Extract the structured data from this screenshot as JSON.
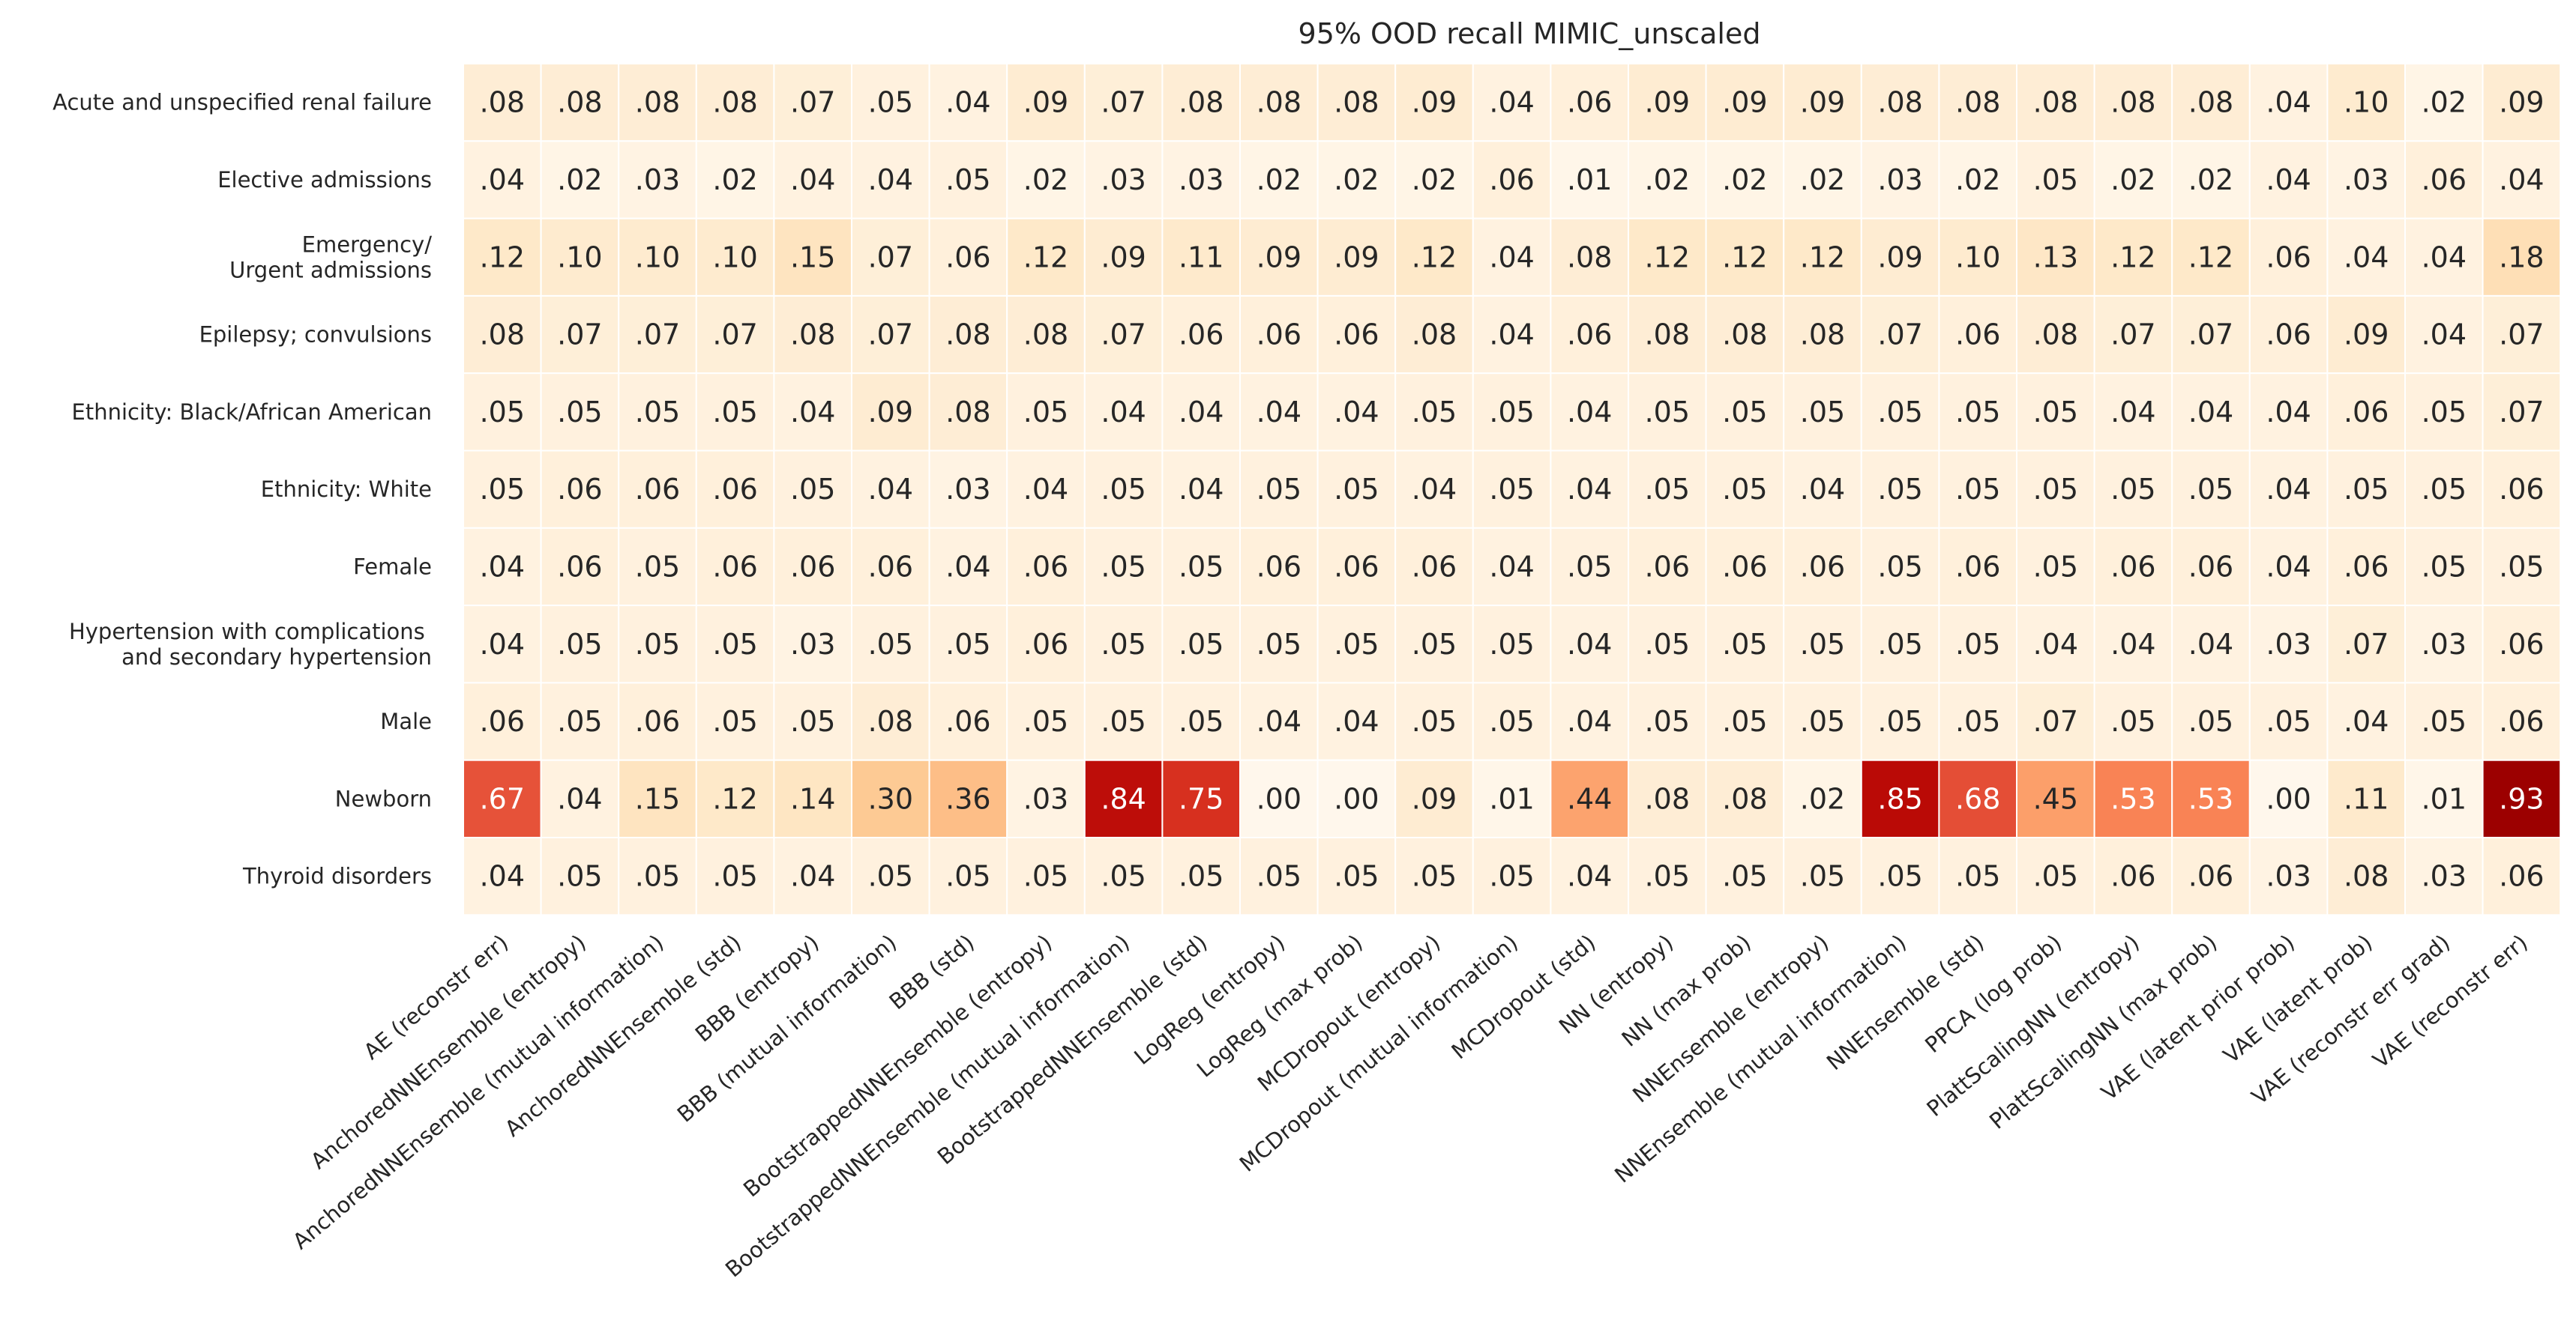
{
  "chart_data": {
    "type": "heatmap",
    "title": "95% OOD recall MIMIC_unscaled",
    "rows": [
      "Acute and unspecified renal failure",
      "Elective admissions",
      "Emergency/\nUrgent admissions",
      "Epilepsy; convulsions",
      "Ethnicity: Black/African American",
      "Ethnicity: White",
      "Female",
      "Hypertension with complications \nand secondary hypertension",
      "Male",
      "Newborn",
      "Thyroid disorders"
    ],
    "columns": [
      "AE (reconstr err)",
      "AnchoredNNEnsemble (entropy)",
      "AnchoredNNEnsemble (mutual information)",
      "AnchoredNNEnsemble (std)",
      "BBB (entropy)",
      "BBB (mutual information)",
      "BBB (std)",
      "BootstrappedNNEnsemble (entropy)",
      "BootstrappedNNEnsemble (mutual information)",
      "BootstrappedNNEnsemble (std)",
      "LogReg (entropy)",
      "LogReg (max prob)",
      "MCDropout (entropy)",
      "MCDropout (mutual information)",
      "MCDropout (std)",
      "NN (entropy)",
      "NN (max prob)",
      "NNEnsemble (entropy)",
      "NNEnsemble (mutual information)",
      "NNEnsemble (std)",
      "PPCA (log prob)",
      "PlattScalingNN (entropy)",
      "PlattScalingNN (max prob)",
      "VAE (latent prior prob)",
      "VAE (latent prob)",
      "VAE (reconstr err grad)",
      "VAE (reconstr err)"
    ],
    "values": [
      [
        0.08,
        0.08,
        0.08,
        0.08,
        0.07,
        0.05,
        0.04,
        0.09,
        0.07,
        0.08,
        0.08,
        0.08,
        0.09,
        0.04,
        0.06,
        0.09,
        0.09,
        0.09,
        0.08,
        0.08,
        0.08,
        0.08,
        0.08,
        0.04,
        0.1,
        0.02,
        0.09
      ],
      [
        0.04,
        0.02,
        0.03,
        0.02,
        0.04,
        0.04,
        0.05,
        0.02,
        0.03,
        0.03,
        0.02,
        0.02,
        0.02,
        0.06,
        0.01,
        0.02,
        0.02,
        0.02,
        0.03,
        0.02,
        0.05,
        0.02,
        0.02,
        0.04,
        0.03,
        0.06,
        0.04
      ],
      [
        0.12,
        0.1,
        0.1,
        0.1,
        0.15,
        0.07,
        0.06,
        0.12,
        0.09,
        0.11,
        0.09,
        0.09,
        0.12,
        0.04,
        0.08,
        0.12,
        0.12,
        0.12,
        0.09,
        0.1,
        0.13,
        0.12,
        0.12,
        0.06,
        0.04,
        0.04,
        0.18
      ],
      [
        0.08,
        0.07,
        0.07,
        0.07,
        0.08,
        0.07,
        0.08,
        0.08,
        0.07,
        0.06,
        0.06,
        0.06,
        0.08,
        0.04,
        0.06,
        0.08,
        0.08,
        0.08,
        0.07,
        0.06,
        0.08,
        0.07,
        0.07,
        0.06,
        0.09,
        0.04,
        0.07
      ],
      [
        0.05,
        0.05,
        0.05,
        0.05,
        0.04,
        0.09,
        0.08,
        0.05,
        0.04,
        0.04,
        0.04,
        0.04,
        0.05,
        0.05,
        0.04,
        0.05,
        0.05,
        0.05,
        0.05,
        0.05,
        0.05,
        0.04,
        0.04,
        0.04,
        0.06,
        0.05,
        0.07
      ],
      [
        0.05,
        0.06,
        0.06,
        0.06,
        0.05,
        0.04,
        0.03,
        0.04,
        0.05,
        0.04,
        0.05,
        0.05,
        0.04,
        0.05,
        0.04,
        0.05,
        0.05,
        0.04,
        0.05,
        0.05,
        0.05,
        0.05,
        0.05,
        0.04,
        0.05,
        0.05,
        0.06
      ],
      [
        0.04,
        0.06,
        0.05,
        0.06,
        0.06,
        0.06,
        0.04,
        0.06,
        0.05,
        0.05,
        0.06,
        0.06,
        0.06,
        0.04,
        0.05,
        0.06,
        0.06,
        0.06,
        0.05,
        0.06,
        0.05,
        0.06,
        0.06,
        0.04,
        0.06,
        0.05,
        0.05
      ],
      [
        0.04,
        0.05,
        0.05,
        0.05,
        0.03,
        0.05,
        0.05,
        0.06,
        0.05,
        0.05,
        0.05,
        0.05,
        0.05,
        0.05,
        0.04,
        0.05,
        0.05,
        0.05,
        0.05,
        0.05,
        0.04,
        0.04,
        0.04,
        0.03,
        0.07,
        0.03,
        0.06
      ],
      [
        0.06,
        0.05,
        0.06,
        0.05,
        0.05,
        0.08,
        0.06,
        0.05,
        0.05,
        0.05,
        0.04,
        0.04,
        0.05,
        0.05,
        0.04,
        0.05,
        0.05,
        0.05,
        0.05,
        0.05,
        0.07,
        0.05,
        0.05,
        0.05,
        0.04,
        0.05,
        0.06
      ],
      [
        0.67,
        0.04,
        0.15,
        0.12,
        0.14,
        0.3,
        0.36,
        0.03,
        0.84,
        0.75,
        0.0,
        0.0,
        0.09,
        0.01,
        0.44,
        0.08,
        0.08,
        0.02,
        0.85,
        0.68,
        0.45,
        0.53,
        0.53,
        0.0,
        0.11,
        0.01,
        0.93
      ],
      [
        0.04,
        0.05,
        0.05,
        0.05,
        0.04,
        0.05,
        0.05,
        0.05,
        0.05,
        0.05,
        0.05,
        0.05,
        0.05,
        0.05,
        0.04,
        0.05,
        0.05,
        0.05,
        0.05,
        0.05,
        0.05,
        0.06,
        0.06,
        0.03,
        0.08,
        0.03,
        0.06
      ]
    ],
    "vmin": 0,
    "vmax": 1,
    "colormap": "OrRd",
    "grid": false,
    "legend": "none"
  }
}
